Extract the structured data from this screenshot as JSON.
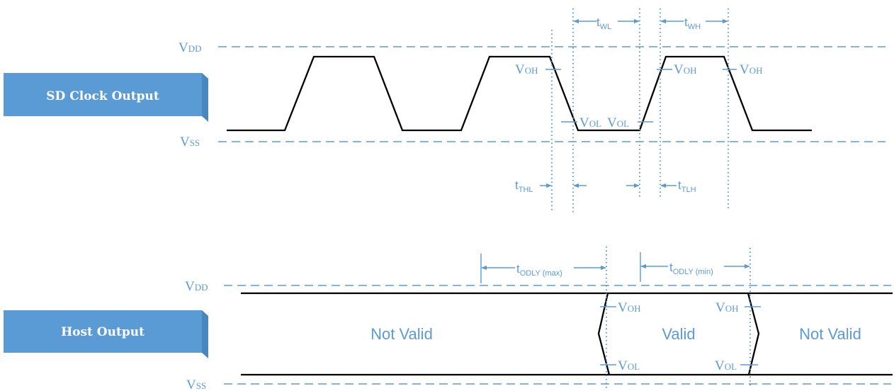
{
  "colors": {
    "accent": "#5b9bd5",
    "box_face": "#5b9bd5",
    "box_side": "#4a86c0",
    "box_top": "#a9c9ea",
    "waveform": "#000000",
    "background": "#ffffff"
  },
  "clock": {
    "box_label": "SD Clock Output",
    "vdd": {
      "main": "V",
      "sub": "DD"
    },
    "vss": {
      "main": "V",
      "sub": "SS"
    },
    "voh": "V",
    "voh_sub": "OH",
    "vol": "V",
    "vol_sub": "OL",
    "t_wl": {
      "main": "t",
      "sub": "WL"
    },
    "t_wh": {
      "main": "t",
      "sub": "WH"
    },
    "t_thl": {
      "main": "t",
      "sub": "THL"
    },
    "t_tlh": {
      "main": "t",
      "sub": "TLH"
    }
  },
  "host": {
    "box_label": "Host Output",
    "vdd": {
      "main": "V",
      "sub": "DD"
    },
    "vss": {
      "main": "V",
      "sub": "SS"
    },
    "voh": "V",
    "voh_sub": "OH",
    "vol": "V",
    "vol_sub": "OL",
    "t_odly_max": {
      "main": "t",
      "sub": "ODLY (max)"
    },
    "t_odly_min": {
      "main": "t",
      "sub": "ODLY (min)"
    },
    "not_valid_left": "Not Valid",
    "valid": "Valid",
    "not_valid_right": "Not Valid"
  }
}
